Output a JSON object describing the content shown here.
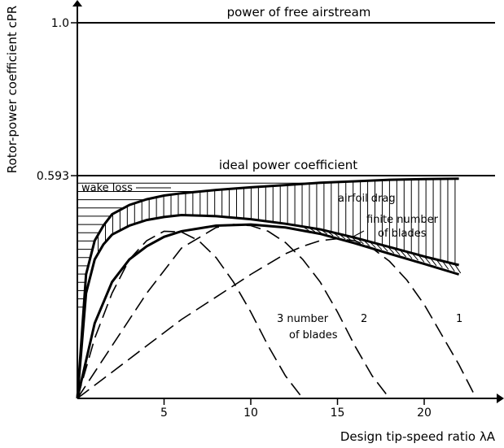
{
  "chart_data": {
    "type": "line",
    "title": "",
    "xlabel": "Design tip-speed ratio λA",
    "ylabel": "Rotor-power coefficient cPR",
    "xlim": [
      0,
      24.5
    ],
    "ylim": [
      0,
      1.08
    ],
    "x_ticks": [
      5,
      10,
      15,
      20
    ],
    "x_tick_labels": [
      "5",
      "10",
      "15",
      "20"
    ],
    "y_ticks": [
      0.593,
      1.0
    ],
    "y_tick_labels": [
      "0.593",
      "1.0"
    ],
    "grid": false,
    "reference_lines": [
      {
        "name": "power of free airstream",
        "y": 1.0
      },
      {
        "name": "ideal power coefficient",
        "y": 0.593
      }
    ],
    "series": [
      {
        "name": "wake loss",
        "style": "solid",
        "x": [
          0,
          0.5,
          1,
          1.5,
          2,
          3,
          4,
          5,
          6,
          8,
          10,
          12,
          14,
          16,
          18,
          20,
          22
        ],
        "y": [
          0,
          0.33,
          0.42,
          0.46,
          0.49,
          0.515,
          0.53,
          0.54,
          0.546,
          0.555,
          0.562,
          0.568,
          0.574,
          0.578,
          0.582,
          0.584,
          0.585
        ]
      },
      {
        "name": "airfoil drag",
        "style": "solid",
        "x": [
          0,
          0.5,
          1,
          1.5,
          2,
          3,
          4,
          5,
          6,
          8,
          10,
          12,
          14,
          16,
          18,
          20,
          22
        ],
        "y": [
          0,
          0.28,
          0.37,
          0.41,
          0.436,
          0.46,
          0.475,
          0.483,
          0.488,
          0.485,
          0.477,
          0.465,
          0.45,
          0.428,
          0.403,
          0.378,
          0.355
        ]
      },
      {
        "name": "finite number of blades",
        "style": "solid",
        "x": [
          0,
          1,
          2,
          3,
          4,
          5,
          6,
          8,
          10,
          12,
          14,
          16,
          18,
          20,
          22
        ],
        "y": [
          0,
          0.2,
          0.31,
          0.37,
          0.405,
          0.43,
          0.445,
          0.46,
          0.463,
          0.455,
          0.438,
          0.413,
          0.385,
          0.358,
          0.33
        ]
      },
      {
        "name": "3",
        "style": "dashed",
        "x": [
          0,
          1,
          2,
          3,
          4,
          5,
          6,
          7,
          8,
          9,
          10,
          11,
          12,
          13
        ],
        "y": [
          0,
          0.16,
          0.28,
          0.37,
          0.42,
          0.445,
          0.443,
          0.42,
          0.375,
          0.31,
          0.23,
          0.14,
          0.06,
          0
        ]
      },
      {
        "name": "2",
        "style": "dashed",
        "x": [
          0,
          2,
          4,
          6,
          8,
          9,
          10,
          11,
          12,
          13,
          14,
          15,
          16,
          17,
          18
        ],
        "y": [
          0,
          0.14,
          0.28,
          0.4,
          0.455,
          0.463,
          0.46,
          0.445,
          0.415,
          0.37,
          0.31,
          0.23,
          0.14,
          0.06,
          0
        ]
      },
      {
        "name": "1",
        "style": "dashed",
        "x": [
          0,
          2,
          4,
          6,
          8,
          10,
          12,
          13,
          14,
          15,
          16,
          17,
          18,
          19,
          20,
          21,
          22,
          23
        ],
        "y": [
          0,
          0.07,
          0.14,
          0.21,
          0.27,
          0.33,
          0.385,
          0.405,
          0.42,
          0.425,
          0.42,
          0.4,
          0.365,
          0.315,
          0.25,
          0.17,
          0.09,
          0
        ]
      }
    ],
    "annotations": [
      {
        "text": "power of free airstream"
      },
      {
        "text": "ideal power coefficient"
      },
      {
        "text": "wake loss"
      },
      {
        "text": "airfoil drag"
      },
      {
        "text": "finite number"
      },
      {
        "text": "of blades"
      },
      {
        "text": "3 number"
      },
      {
        "text": "of blades"
      },
      {
        "text": "2"
      },
      {
        "text": "1"
      }
    ]
  }
}
